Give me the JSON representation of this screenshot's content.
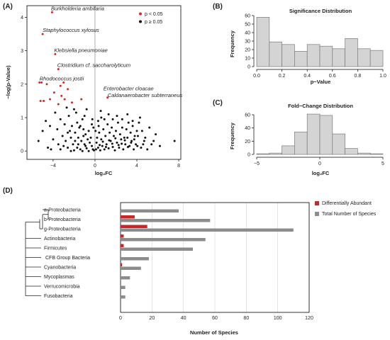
{
  "colors": {
    "significant": "#d62728",
    "nonsignificant": "#111111",
    "hist_fill": "#d4d4d4",
    "hist_stroke": "#7a7a7a",
    "bar_diff": "#c62828",
    "bar_total": "#8c8c8c",
    "grid": "#d9d9d9"
  },
  "panels": {
    "a": "(A)",
    "b": "(B)",
    "c": "(C)",
    "d": "(D)"
  },
  "chart_data": [
    {
      "type": "scatter",
      "xlabel": "log₂FC",
      "ylabel": "−log(p-Value)",
      "xlim": [
        -6.5,
        8.2
      ],
      "ylim": [
        -0.25,
        4.35
      ],
      "xticks": [
        "−4",
        "0",
        "4",
        "8"
      ],
      "xtick_values": [
        -4,
        0,
        4,
        8
      ],
      "yticks": [
        "0",
        "1",
        "2",
        "3",
        "4"
      ],
      "ytick_values": [
        0,
        1,
        2,
        3,
        4
      ],
      "legend": [
        {
          "label": "p < 0.05",
          "color": "#d62728"
        },
        {
          "label": "p ≥ 0.05",
          "color": "#111111"
        }
      ],
      "legend_position": "top-right",
      "annotations": [
        {
          "text": "Burkholderia ambifaria",
          "x": -4.2,
          "y": 4.15
        },
        {
          "text": "Staphylococcus xylosus",
          "x": -5.0,
          "y": 3.5
        },
        {
          "text": "Klebsiella pneumoniae",
          "x": -3.9,
          "y": 2.9
        },
        {
          "text": "Clostridium cf. saccharolyticum",
          "x": -3.6,
          "y": 2.45
        },
        {
          "text": "Rhodococcus jostii",
          "x": -5.3,
          "y": 2.05
        },
        {
          "text": "Enterobacter cloacae",
          "x": 0.8,
          "y": 1.75
        },
        {
          "text": "Caldanaerobacter subterraneus",
          "x": 1.2,
          "y": 1.55
        }
      ],
      "series": [
        {
          "name": "p < 0.05",
          "points": [
            [
              -4.1,
              4.15
            ],
            [
              -5.0,
              3.5
            ],
            [
              -3.8,
              2.9
            ],
            [
              -3.5,
              2.45
            ],
            [
              -5.3,
              2.05
            ],
            [
              -5.1,
              2.05
            ],
            [
              -4.6,
              2.0
            ],
            [
              -3.0,
              2.05
            ],
            [
              -3.3,
              1.95
            ],
            [
              -2.6,
              1.85
            ],
            [
              -3.9,
              1.75
            ],
            [
              -3.2,
              1.65
            ],
            [
              -2.9,
              1.55
            ],
            [
              -4.3,
              1.55
            ],
            [
              -5.2,
              1.5
            ],
            [
              -4.9,
              1.5
            ],
            [
              -1.3,
              1.55
            ],
            [
              1.2,
              1.6
            ],
            [
              -3.5,
              1.4
            ],
            [
              -2.2,
              1.45
            ]
          ]
        },
        {
          "name": "p ≥ 0.05",
          "points": [
            [
              -2.0,
              1.25
            ],
            [
              -1.8,
              1.15
            ],
            [
              -2.5,
              1.05
            ],
            [
              -1.2,
              0.95
            ],
            [
              -3.3,
              0.95
            ],
            [
              -2.9,
              0.8
            ],
            [
              -1.7,
              0.85
            ],
            [
              -2.2,
              0.75
            ],
            [
              -1.5,
              0.7
            ],
            [
              -3.6,
              0.65
            ],
            [
              -1.1,
              0.65
            ],
            [
              -2.6,
              0.55
            ],
            [
              -1.9,
              0.55
            ],
            [
              -0.9,
              0.5
            ],
            [
              -3.1,
              0.45
            ],
            [
              -2.3,
              0.4
            ],
            [
              -1.6,
              0.4
            ],
            [
              -0.7,
              0.35
            ],
            [
              -4.0,
              0.35
            ],
            [
              -2.8,
              0.3
            ],
            [
              -1.3,
              0.3
            ],
            [
              -0.5,
              0.25
            ],
            [
              -3.5,
              0.2
            ],
            [
              -2.1,
              0.2
            ],
            [
              -1.0,
              0.2
            ],
            [
              -0.3,
              0.15
            ],
            [
              -4.5,
              0.1
            ],
            [
              -2.6,
              0.1
            ],
            [
              -1.7,
              0.1
            ],
            [
              -0.8,
              0.08
            ],
            [
              -1.4,
              0.05
            ],
            [
              -0.2,
              0.05
            ],
            [
              -2.0,
              0.02
            ],
            [
              -1.2,
              0.0
            ],
            [
              -0.6,
              0.0
            ],
            [
              -0.1,
              0.02
            ],
            [
              -3.3,
              0.05
            ],
            [
              -1.9,
              0.3
            ],
            [
              -0.4,
              0.4
            ],
            [
              -1.1,
              0.45
            ],
            [
              -2.4,
              0.6
            ],
            [
              -0.6,
              0.6
            ],
            [
              -1.4,
              0.75
            ],
            [
              -0.3,
              0.8
            ],
            [
              -1.0,
              1.05
            ],
            [
              -4.2,
              0.05
            ],
            [
              -3.0,
              0.15
            ],
            [
              -0.9,
              0.15
            ],
            [
              -2.3,
              0.0
            ],
            [
              -1.6,
              0.2
            ],
            [
              0.1,
              0.05
            ],
            [
              0.3,
              0.1
            ],
            [
              0.5,
              0.02
            ],
            [
              0.7,
              0.15
            ],
            [
              0.9,
              0.05
            ],
            [
              1.1,
              0.2
            ],
            [
              1.3,
              0.08
            ],
            [
              1.5,
              0.3
            ],
            [
              1.7,
              0.12
            ],
            [
              1.9,
              0.02
            ],
            [
              2.1,
              0.25
            ],
            [
              2.3,
              0.1
            ],
            [
              2.5,
              0.35
            ],
            [
              2.7,
              0.05
            ],
            [
              2.9,
              0.2
            ],
            [
              3.1,
              0.4
            ],
            [
              3.3,
              0.15
            ],
            [
              3.5,
              0.3
            ],
            [
              3.7,
              0.05
            ],
            [
              3.9,
              0.2
            ],
            [
              4.1,
              0.45
            ],
            [
              4.4,
              0.1
            ],
            [
              4.7,
              0.3
            ],
            [
              5.0,
              0.05
            ],
            [
              5.4,
              0.2
            ],
            [
              0.2,
              0.4
            ],
            [
              0.4,
              0.55
            ],
            [
              0.6,
              0.35
            ],
            [
              0.8,
              0.65
            ],
            [
              1.0,
              0.45
            ],
            [
              1.2,
              0.8
            ],
            [
              1.4,
              0.55
            ],
            [
              1.6,
              0.7
            ],
            [
              1.8,
              0.45
            ],
            [
              2.0,
              0.6
            ],
            [
              2.2,
              0.85
            ],
            [
              2.4,
              0.5
            ],
            [
              2.6,
              0.7
            ],
            [
              2.8,
              0.4
            ],
            [
              3.0,
              0.65
            ],
            [
              3.2,
              0.85
            ],
            [
              3.4,
              0.55
            ],
            [
              3.6,
              0.75
            ],
            [
              3.8,
              0.45
            ],
            [
              4.0,
              0.6
            ],
            [
              4.2,
              0.85
            ],
            [
              4.5,
              0.6
            ],
            [
              4.8,
              0.4
            ],
            [
              5.2,
              0.7
            ],
            [
              5.6,
              0.3
            ],
            [
              0.3,
              0.9
            ],
            [
              0.6,
              1.0
            ],
            [
              0.9,
              0.95
            ],
            [
              1.3,
              1.1
            ],
            [
              1.7,
              0.95
            ],
            [
              2.1,
              1.05
            ],
            [
              2.6,
              0.95
            ],
            [
              3.1,
              1.1
            ],
            [
              3.6,
              0.9
            ],
            [
              4.3,
              1.0
            ],
            [
              0.15,
              0.25
            ],
            [
              0.45,
              0.18
            ],
            [
              0.75,
              0.28
            ],
            [
              1.05,
              0.12
            ],
            [
              1.35,
              0.32
            ],
            [
              1.65,
              0.22
            ],
            [
              1.95,
              0.38
            ],
            [
              2.25,
              0.18
            ],
            [
              2.55,
              0.22
            ],
            [
              2.85,
              0.32
            ],
            [
              3.15,
              0.12
            ],
            [
              3.45,
              0.25
            ],
            [
              3.75,
              0.35
            ],
            [
              4.05,
              0.15
            ],
            [
              4.6,
              0.2
            ],
            [
              0.05,
              0.6
            ],
            [
              -0.15,
              0.7
            ],
            [
              0.35,
              0.75
            ],
            [
              -0.25,
              0.95
            ],
            [
              0.55,
              1.2
            ],
            [
              7.6,
              0.3
            ],
            [
              5.8,
              0.5
            ],
            [
              6.2,
              0.15
            ],
            [
              -5.4,
              0.3
            ],
            [
              -5.0,
              0.6
            ],
            [
              -4.7,
              0.9
            ],
            [
              -4.3,
              0.75
            ],
            [
              -3.8,
              1.15
            ],
            [
              -2.7,
              1.3
            ],
            [
              -0.8,
              1.25
            ]
          ]
        }
      ]
    },
    {
      "type": "bar",
      "title": "Significance Distribution",
      "xlabel": "p−Value",
      "ylabel": "Frequency",
      "bin_edges": [
        0.0,
        0.1,
        0.2,
        0.3,
        0.4,
        0.5,
        0.6,
        0.7,
        0.8,
        0.9,
        1.0
      ],
      "values": [
        58,
        29,
        26,
        18,
        26,
        24,
        21,
        33,
        21,
        19
      ],
      "xlim": [
        0.0,
        1.0
      ],
      "ylim": [
        0,
        60
      ],
      "xticks": [
        "0.0",
        "0.2",
        "0.4",
        "0.6",
        "0.8",
        "1.0"
      ],
      "xtick_values": [
        0.0,
        0.2,
        0.4,
        0.6,
        0.8,
        1.0
      ],
      "yticks": [
        "0",
        "10",
        "20",
        "30",
        "40",
        "50",
        "60"
      ],
      "ytick_values": [
        0,
        10,
        20,
        30,
        40,
        50,
        60
      ]
    },
    {
      "type": "bar",
      "title": "Fold−Change Distribution",
      "xlabel": "log₂FC",
      "ylabel": "Frequency",
      "bin_edges": [
        -5,
        -4,
        -3,
        -2,
        -1,
        0,
        1,
        2,
        3,
        4,
        5
      ],
      "values": [
        1,
        2,
        13,
        34,
        61,
        59,
        31,
        9,
        2,
        1
      ],
      "xlim": [
        -5,
        5
      ],
      "ylim": [
        0,
        60
      ],
      "xticks": [
        "−5",
        "0",
        "5"
      ],
      "xtick_values": [
        -5,
        0,
        5
      ],
      "yticks": [
        "0",
        "20",
        "40",
        "60"
      ],
      "ytick_values": [
        0,
        20,
        40,
        60
      ]
    },
    {
      "type": "bar",
      "orientation": "horizontal",
      "xlabel": "Number of Species",
      "xlim": [
        0,
        120
      ],
      "xticks": [
        "0",
        "20",
        "40",
        "60",
        "80",
        "100",
        "120"
      ],
      "xtick_values": [
        0,
        20,
        40,
        60,
        80,
        100,
        120
      ],
      "grid": true,
      "legend_position": "top-right",
      "categories": [
        "a-Proteobacteria",
        "b-Proteobacteria",
        "g-Proteobacteria",
        "Actinobacteria",
        "Firmicutes",
        "CFB Group Bacteria",
        "Cyanobacteria",
        "Mycoplasmas",
        "Verrucomicrobia",
        "Fusobacteria"
      ],
      "series": [
        {
          "name": "Differentially Abundant",
          "values": [
            0,
            9,
            17,
            2,
            2,
            0,
            1,
            0,
            0,
            0
          ]
        },
        {
          "name": "Total Number of Species",
          "values": [
            37,
            57,
            110,
            54,
            46,
            18,
            13,
            6,
            3,
            3
          ]
        }
      ]
    }
  ]
}
